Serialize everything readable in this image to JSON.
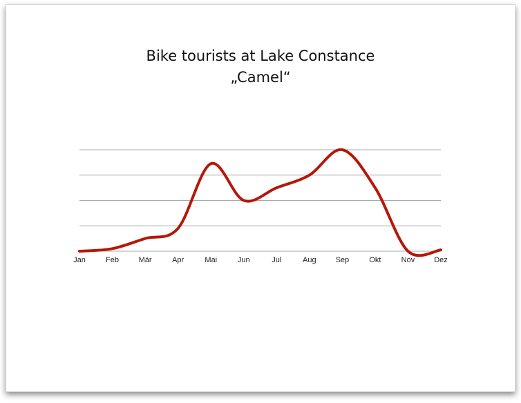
{
  "chart_data": {
    "type": "line",
    "title": "Bike tourists at Lake Constance",
    "subtitle": "„Camel“",
    "categories": [
      "Jan",
      "Feb",
      "Mär",
      "Apr",
      "Mai",
      "Jun",
      "Jul",
      "Aug",
      "Sep",
      "Okt",
      "Nov",
      "Dez"
    ],
    "values": [
      0,
      0.1,
      0.5,
      0.9,
      3.45,
      2.0,
      2.5,
      3.0,
      4.0,
      2.5,
      0,
      0.05
    ],
    "color": "#b5170a",
    "ylim": [
      0,
      4
    ],
    "yticks": [
      0,
      1,
      2,
      3,
      4
    ],
    "grid": true
  }
}
